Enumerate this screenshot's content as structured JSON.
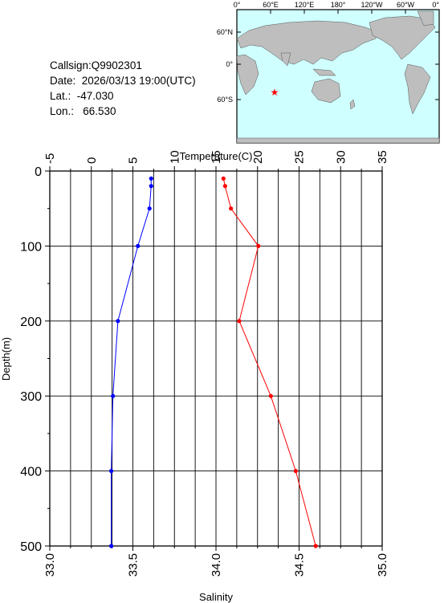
{
  "station": {
    "callsign": "Callsign:Q9902301",
    "date": "Date:  2026/03/13 19:00(UTC)",
    "lat": "Lat.:  -47.030",
    "lon": "Lon.:   66.530"
  },
  "map": {
    "lon_labels": [
      "0°",
      "60°E",
      "120°E",
      "180°",
      "120°W",
      "60°W",
      "0°"
    ],
    "lat_labels": [
      "60°N",
      "0°",
      "60°S"
    ],
    "station_marker": {
      "lon": 66.53,
      "lat": -47.03,
      "color": "#ff0000"
    },
    "ocean_color": "#cfffff",
    "land_color": "#bebebe"
  },
  "chart_data": {
    "type": "line",
    "title": "",
    "ylabel": "Depth(m)",
    "y_ticks": [
      0,
      100,
      200,
      300,
      400,
      500
    ],
    "ylim": [
      0,
      500
    ],
    "y_inverted": true,
    "top_axis": {
      "label": "Temperature(C)",
      "range": [
        -5,
        35
      ],
      "ticks": [
        -5,
        0,
        5,
        10,
        15,
        20,
        25,
        30,
        35
      ],
      "tick_labels": [
        "-5",
        "0",
        "5",
        "10",
        "15",
        "20",
        "25",
        "30",
        "35"
      ]
    },
    "bottom_axis": {
      "label": "Salinity",
      "range": [
        33.0,
        35.0
      ],
      "ticks": [
        33.0,
        33.5,
        34.0,
        34.5,
        35.0
      ],
      "tick_labels": [
        "33.0",
        "33.5",
        "34.0",
        "34.5",
        "35.0"
      ]
    },
    "grid": true,
    "series": [
      {
        "axis": "top",
        "color": "#ff0000",
        "points": [
          {
            "x": 15.9,
            "y": 10
          },
          {
            "x": 16.1,
            "y": 20
          },
          {
            "x": 16.8,
            "y": 50
          },
          {
            "x": 20.1,
            "y": 100
          },
          {
            "x": 17.8,
            "y": 200
          },
          {
            "x": 21.6,
            "y": 300
          },
          {
            "x": 24.6,
            "y": 400
          },
          {
            "x": 27.0,
            "y": 500
          }
        ]
      },
      {
        "axis": "bottom",
        "color": "#0000ff",
        "points": [
          {
            "x": 33.61,
            "y": 10
          },
          {
            "x": 33.61,
            "y": 20
          },
          {
            "x": 33.6,
            "y": 50
          },
          {
            "x": 33.53,
            "y": 100
          },
          {
            "x": 33.41,
            "y": 200
          },
          {
            "x": 33.38,
            "y": 300
          },
          {
            "x": 33.37,
            "y": 400
          },
          {
            "x": 33.37,
            "y": 500
          }
        ]
      }
    ]
  }
}
